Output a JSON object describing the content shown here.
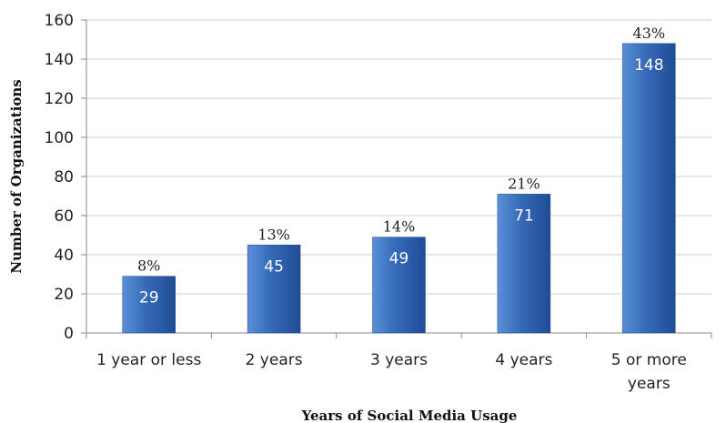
{
  "chart_data": {
    "type": "bar",
    "xlabel": "Years of Social Media Usage",
    "ylabel": "Number of Organizations",
    "ylim": [
      0,
      160
    ],
    "yticks": [
      0,
      20,
      40,
      60,
      80,
      100,
      120,
      140,
      160
    ],
    "grid": true,
    "categories": [
      [
        "1 year or less"
      ],
      [
        "2 years"
      ],
      [
        "3 years"
      ],
      [
        "4 years"
      ],
      [
        "5 or more",
        "years"
      ]
    ],
    "values": [
      29,
      45,
      49,
      71,
      148
    ],
    "percent_labels": [
      "8%",
      "13%",
      "14%",
      "21%",
      "43%"
    ],
    "colors": {
      "bar_light": "#5a8fd6",
      "bar_mid": "#3569b8",
      "bar_dark": "#1f4d94",
      "grid": "#cfcfcf",
      "axis": "#8a8a8a"
    }
  }
}
